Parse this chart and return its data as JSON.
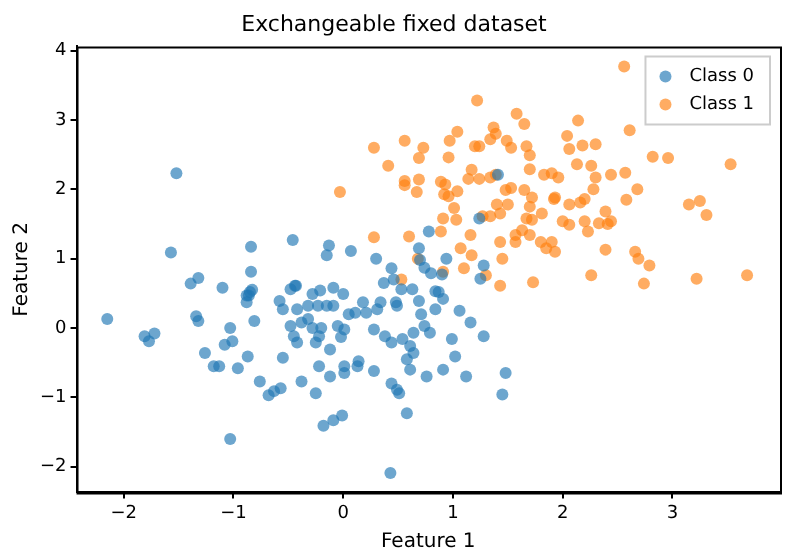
{
  "chart_data": {
    "type": "scatter",
    "title": "Exchangeable fixed dataset",
    "xlabel": "Feature 1",
    "ylabel": "Feature 2",
    "xlim": [
      -2.43,
      3.98
    ],
    "ylim": [
      -2.37,
      4.06
    ],
    "xticks": [
      -2,
      -1,
      0,
      1,
      2,
      3
    ],
    "yticks": [
      -2,
      -1,
      0,
      1,
      2,
      3,
      4
    ],
    "grid": false,
    "legend": "top right",
    "marker": "circle",
    "series": [
      {
        "name": "Class 0",
        "color": "#1f77b4",
        "x": [
          -1.52,
          -1.57,
          -0.84,
          -0.84,
          -0.46,
          -1.39,
          -1.32,
          -1.1,
          -0.86,
          -0.83,
          -0.48,
          -0.44,
          -0.28,
          -0.21,
          -0.13,
          -0.15,
          0.07,
          -0.09,
          0.0,
          0.3,
          0.44,
          0.69,
          0.78,
          0.7,
          0.74,
          0.8,
          0.37,
          0.46,
          0.53,
          0.63,
          0.84,
          0.9,
          1.41,
          1.24,
          0.94,
          1.28,
          1.25,
          0.91,
          1.06,
          1.16,
          1.28,
          0.99,
          1.02,
          0.91,
          1.12,
          1.48,
          1.45,
          -2.15,
          -1.81,
          -1.77,
          -1.72,
          -1.34,
          -1.32,
          -0.88,
          -0.85,
          -0.88,
          -1.03,
          -1.08,
          -1.01,
          -0.81,
          -1.26,
          -1.18,
          -1.13,
          -0.96,
          -0.87,
          -0.76,
          -0.68,
          -0.63,
          -0.57,
          -0.38,
          -0.55,
          -0.58,
          -0.55,
          -0.43,
          -0.42,
          -0.32,
          -0.23,
          -0.15,
          -0.09,
          -0.48,
          -0.38,
          -0.32,
          -0.28,
          -0.2,
          -0.22,
          -0.45,
          -0.42,
          -0.25,
          -0.12,
          -0.05,
          0.01,
          -0.02,
          -0.22,
          -0.12,
          -0.25,
          0.01,
          0.01,
          0.14,
          0.28,
          0.13,
          -0.18,
          -0.09,
          -0.01,
          -1.03,
          0.43,
          0.05,
          0.11,
          0.18,
          0.21,
          0.31,
          0.34,
          0.28,
          0.38,
          0.44,
          0.54,
          0.61,
          0.64,
          0.74,
          0.71,
          0.79,
          0.84,
          0.48,
          0.49,
          0.69,
          0.87,
          0.44,
          0.49,
          0.51,
          0.58,
          0.61,
          0.76,
          0.58,
          0.64
        ],
        "values": [
          2.23,
          1.09,
          1.17,
          0.81,
          1.27,
          0.64,
          0.72,
          0.58,
          0.47,
          0.55,
          0.56,
          0.61,
          0.49,
          0.54,
          1.19,
          1.05,
          1.11,
          0.58,
          0.49,
          1.0,
          0.86,
          1.15,
          1.39,
          0.98,
          0.87,
          0.79,
          0.65,
          0.7,
          0.56,
          0.56,
          0.53,
          0.77,
          2.21,
          1.58,
          1.0,
          0.9,
          0.71,
          0.42,
          0.25,
          0.08,
          -0.12,
          -0.16,
          -0.41,
          -0.6,
          -0.7,
          -0.65,
          -0.96,
          0.13,
          -0.12,
          -0.19,
          -0.08,
          0.17,
          0.1,
          0.47,
          0.52,
          0.37,
          0.0,
          -0.24,
          -0.19,
          0.1,
          -0.36,
          -0.55,
          -0.55,
          -0.58,
          -0.41,
          -0.77,
          -0.97,
          -0.91,
          -0.87,
          -0.77,
          -0.43,
          0.39,
          0.27,
          0.61,
          0.27,
          0.32,
          0.32,
          0.32,
          0.32,
          0.03,
          0.08,
          0.13,
          0.0,
          0.0,
          -0.12,
          -0.12,
          -0.21,
          -0.21,
          -0.31,
          0.03,
          -0.02,
          -0.13,
          -0.55,
          -0.7,
          -0.94,
          -0.55,
          -0.65,
          -0.48,
          -0.62,
          -0.55,
          -1.41,
          -1.33,
          -1.26,
          -1.6,
          -2.09,
          0.2,
          0.22,
          0.37,
          0.22,
          0.27,
          0.37,
          -0.02,
          -0.12,
          -0.21,
          -0.16,
          -0.26,
          -0.07,
          0.03,
          0.2,
          -0.07,
          0.27,
          0.37,
          0.32,
          0.39,
          0.52,
          -0.8,
          -0.89,
          -0.94,
          -1.23,
          -0.6,
          -0.7,
          -0.45,
          -0.36
        ]
      },
      {
        "name": "Class 1",
        "color": "#ff7f0e",
        "x": [
          0.28,
          0.56,
          0.73,
          0.41,
          0.69,
          0.56,
          0.69,
          0.56,
          0.67,
          0.89,
          0.92,
          -0.03,
          0.28,
          0.6,
          0.68,
          0.53,
          0.89,
          2.56,
          1.22,
          1.58,
          1.65,
          1.37,
          1.39,
          1.34,
          1.04,
          0.97,
          1.2,
          1.24,
          1.49,
          1.53,
          1.67,
          1.7,
          2.04,
          2.14,
          2.06,
          2.18,
          2.3,
          2.61,
          2.82,
          2.96,
          3.53,
          0.96,
          1.17,
          1.14,
          1.24,
          1.34,
          1.39,
          1.48,
          1.53,
          1.65,
          1.7,
          1.83,
          1.9,
          1.96,
          1.93,
          2.13,
          2.26,
          2.3,
          2.28,
          2.44,
          2.57,
          2.68,
          0.93,
          0.96,
          1.04,
          1.72,
          1.7,
          1.92,
          2.06,
          2.16,
          2.2,
          2.39,
          2.58,
          2.44,
          3.15,
          3.25,
          3.31,
          1.01,
          1.03,
          0.91,
          1.27,
          1.34,
          1.43,
          1.5,
          1.4,
          1.67,
          1.72,
          1.81,
          1.63,
          1.7,
          1.57,
          2.0,
          2.06,
          2.2,
          2.23,
          2.33,
          2.41,
          1.16,
          1.07,
          1.17,
          1.43,
          1.45,
          1.57,
          1.8,
          1.85,
          1.93,
          1.9,
          2.39,
          2.66,
          2.69,
          2.79,
          0.91,
          1.1,
          1.3,
          1.43,
          1.73,
          2.26,
          2.74,
          3.22,
          3.68
        ],
        "values": [
          2.6,
          2.7,
          2.6,
          2.34,
          2.45,
          2.12,
          2.14,
          2.06,
          1.96,
          1.39,
          1.93,
          1.96,
          1.31,
          1.32,
          1.0,
          0.7,
          2.11,
          3.77,
          3.28,
          3.09,
          2.94,
          2.89,
          2.8,
          2.72,
          2.83,
          2.7,
          2.62,
          2.62,
          2.7,
          2.6,
          2.62,
          2.49,
          2.77,
          2.99,
          2.58,
          2.63,
          2.65,
          2.85,
          2.47,
          2.45,
          2.36,
          2.46,
          2.28,
          2.15,
          2.15,
          2.17,
          2.21,
          1.99,
          2.02,
          1.99,
          2.29,
          2.21,
          2.23,
          2.17,
          1.88,
          2.36,
          2.34,
          2.17,
          2.0,
          2.21,
          2.24,
          2.0,
          2.07,
          1.9,
          1.97,
          1.88,
          1.75,
          1.86,
          1.78,
          1.81,
          1.86,
          1.68,
          1.85,
          1.54,
          1.78,
          1.83,
          1.63,
          1.73,
          1.56,
          1.58,
          1.61,
          1.61,
          1.65,
          1.78,
          1.78,
          1.58,
          1.56,
          1.65,
          1.41,
          1.34,
          1.34,
          1.54,
          1.49,
          1.54,
          1.39,
          1.51,
          1.5,
          1.34,
          1.15,
          1.05,
          1.24,
          1.0,
          1.24,
          1.24,
          1.15,
          1.1,
          1.24,
          1.13,
          1.1,
          1.0,
          0.9,
          0.81,
          0.86,
          0.76,
          0.61,
          0.66,
          0.76,
          0.64,
          0.71,
          0.76
        ]
      }
    ]
  }
}
